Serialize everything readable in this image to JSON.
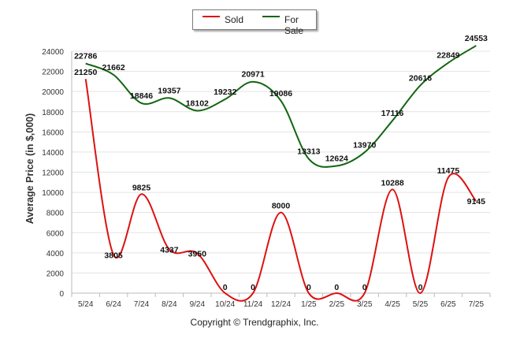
{
  "copyright": "Copyright © Trendgraphix, Inc.",
  "chart_data": {
    "type": "line",
    "title": "",
    "xlabel": "",
    "ylabel": "Average Price (in $,000)",
    "ylim": [
      0,
      24000
    ],
    "yticks": [
      0,
      2000,
      4000,
      6000,
      8000,
      10000,
      12000,
      14000,
      16000,
      18000,
      20000,
      22000,
      24000
    ],
    "categories": [
      "5/24",
      "6/24",
      "7/24",
      "8/24",
      "9/24",
      "10/24",
      "11/24",
      "12/24",
      "1/25",
      "2/25",
      "3/25",
      "4/25",
      "5/25",
      "6/25",
      "7/25"
    ],
    "grid": true,
    "legend": "top-center",
    "series": [
      {
        "name": "Sold",
        "color": "#dd1111",
        "values": [
          21250,
          3805,
          9825,
          4337,
          3950,
          0,
          0,
          8000,
          0,
          0,
          0,
          10288,
          0,
          11475,
          9145
        ]
      },
      {
        "name": "For Sale",
        "color": "#116611",
        "values": [
          22786,
          21662,
          18846,
          19357,
          18102,
          19232,
          20971,
          19086,
          13313,
          12624,
          13970,
          17116,
          20616,
          22849,
          24553
        ]
      }
    ]
  }
}
